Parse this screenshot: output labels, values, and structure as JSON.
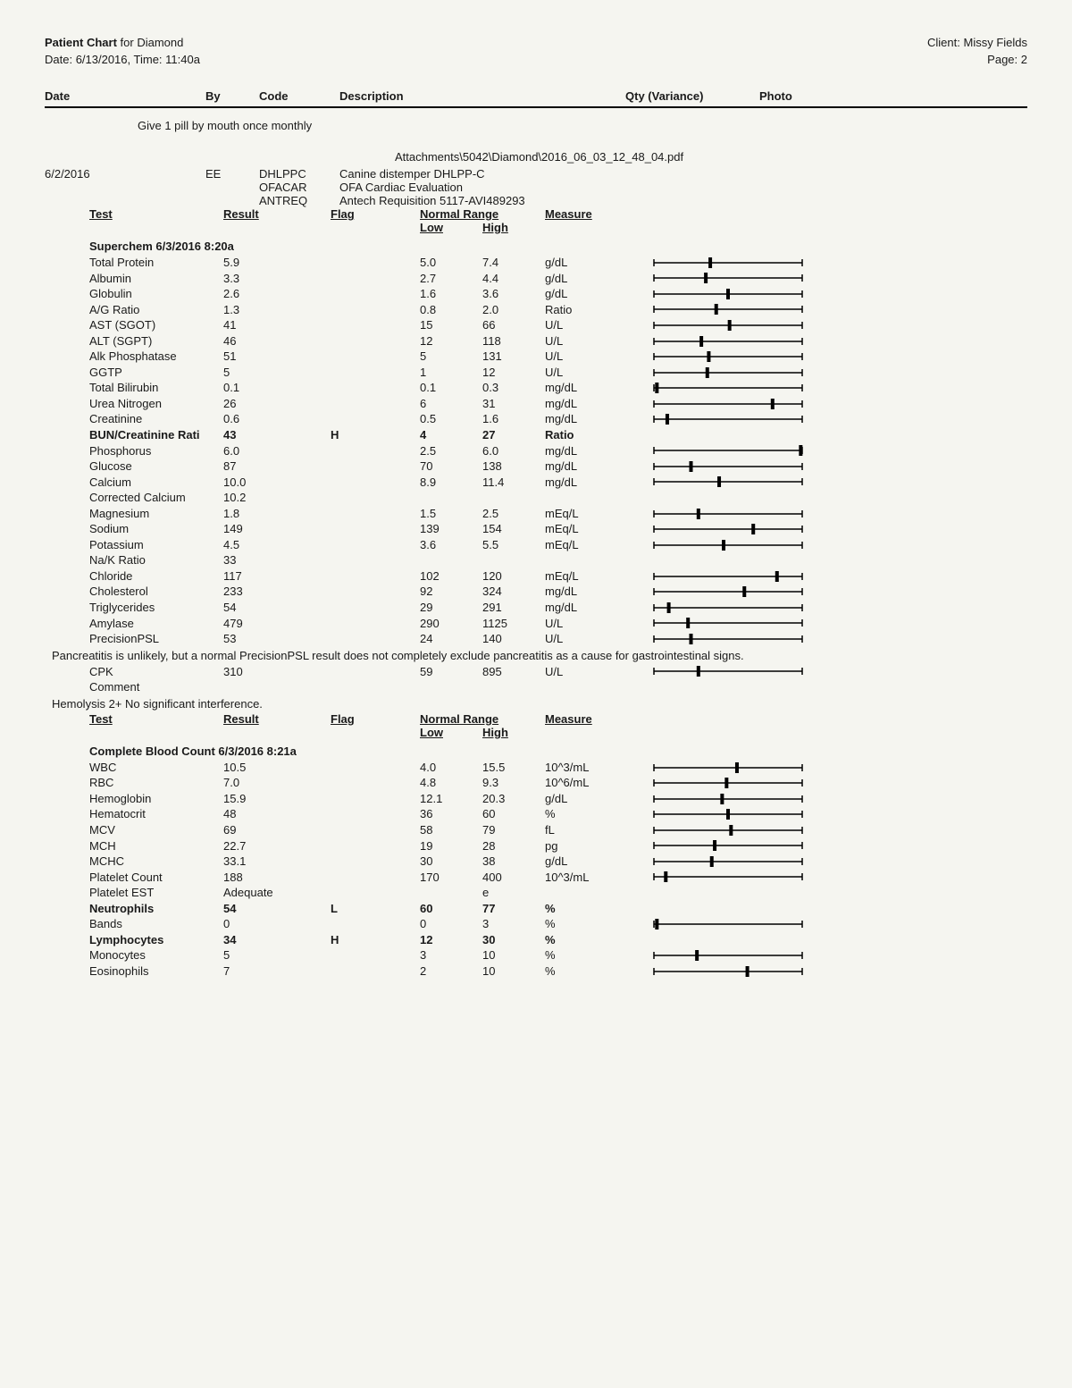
{
  "header": {
    "patient_chart_label": "Patient Chart",
    "for_label": " for ",
    "patient_name": "Diamond",
    "date_label": "Date: ",
    "date": "6/13/2016",
    "time_label": ", Time: ",
    "time": "11:40a",
    "client_label": "Client: ",
    "client_name": "Missy Fields",
    "page_label": "Page: ",
    "page": "2"
  },
  "columns": {
    "date": "Date",
    "by": "By",
    "code": "Code",
    "description": "Description",
    "qty": "Qty (Variance)",
    "photo": "Photo"
  },
  "instruction": "Give 1 pill by mouth once monthly",
  "attachment": "Attachments\\5042\\Diamond\\2016_06_03_12_48_04.pdf",
  "entry": {
    "date": "6/2/2016",
    "by": "EE",
    "codes": [
      {
        "code": "DHLPPC",
        "desc": "Canine distemper DHLPP-C"
      },
      {
        "code": "OFACAR",
        "desc": "OFA Cardiac Evaluation"
      },
      {
        "code": "ANTREQ",
        "desc": "Antech Requisition 5117-AVI489293"
      }
    ]
  },
  "test_headers": {
    "test": "Test",
    "result": "Result",
    "flag": "Flag",
    "normal_range": "Normal Range",
    "low": "Low",
    "high": "High",
    "measure": "Measure"
  },
  "sections": [
    {
      "title": "Superchem 6/3/2016 8:20a",
      "rows": [
        {
          "name": "Total Protein",
          "result": "5.9",
          "flag": "",
          "low": "5.0",
          "high": "7.4",
          "measure": "g/dL",
          "pos": 0.38
        },
        {
          "name": "Albumin",
          "result": "3.3",
          "flag": "",
          "low": "2.7",
          "high": "4.4",
          "measure": "g/dL",
          "pos": 0.35
        },
        {
          "name": "Globulin",
          "result": "2.6",
          "flag": "",
          "low": "1.6",
          "high": "3.6",
          "measure": "g/dL",
          "pos": 0.5
        },
        {
          "name": "A/G Ratio",
          "result": "1.3",
          "flag": "",
          "low": "0.8",
          "high": "2.0",
          "measure": "Ratio",
          "pos": 0.42
        },
        {
          "name": "AST (SGOT)",
          "result": "41",
          "flag": "",
          "low": "15",
          "high": "66",
          "measure": "U/L",
          "pos": 0.51
        },
        {
          "name": "ALT (SGPT)",
          "result": "46",
          "flag": "",
          "low": "12",
          "high": "118",
          "measure": "U/L",
          "pos": 0.32
        },
        {
          "name": "Alk Phosphatase",
          "result": "51",
          "flag": "",
          "low": "5",
          "high": "131",
          "measure": "U/L",
          "pos": 0.37
        },
        {
          "name": "GGTP",
          "result": "5",
          "flag": "",
          "low": "1",
          "high": "12",
          "measure": "U/L",
          "pos": 0.36
        },
        {
          "name": "Total Bilirubin",
          "result": "0.1",
          "flag": "",
          "low": "0.1",
          "high": "0.3",
          "measure": "mg/dL",
          "pos": 0.02
        },
        {
          "name": "Urea Nitrogen",
          "result": "26",
          "flag": "",
          "low": "6",
          "high": "31",
          "measure": "mg/dL",
          "pos": 0.8
        },
        {
          "name": "Creatinine",
          "result": "0.6",
          "flag": "",
          "low": "0.5",
          "high": "1.6",
          "measure": "mg/dL",
          "pos": 0.09
        },
        {
          "name": "BUN/Creatinine Rati",
          "result": "43",
          "flag": "H",
          "low": "4",
          "high": "27",
          "measure": "Ratio",
          "bold": true,
          "pos": null
        },
        {
          "name": "Phosphorus",
          "result": "6.0",
          "flag": "",
          "low": "2.5",
          "high": "6.0",
          "measure": "mg/dL",
          "pos": 0.99
        },
        {
          "name": "Glucose",
          "result": "87",
          "flag": "",
          "low": "70",
          "high": "138",
          "measure": "mg/dL",
          "pos": 0.25
        },
        {
          "name": "Calcium",
          "result": "10.0",
          "flag": "",
          "low": "8.9",
          "high": "11.4",
          "measure": "mg/dL",
          "pos": 0.44
        },
        {
          "name": "Corrected Calcium",
          "result": "10.2",
          "flag": "",
          "low": "",
          "high": "",
          "measure": "",
          "pos": null
        },
        {
          "name": "Magnesium",
          "result": "1.8",
          "flag": "",
          "low": "1.5",
          "high": "2.5",
          "measure": "mEq/L",
          "pos": 0.3
        },
        {
          "name": "Sodium",
          "result": "149",
          "flag": "",
          "low": "139",
          "high": "154",
          "measure": "mEq/L",
          "pos": 0.67
        },
        {
          "name": "Potassium",
          "result": "4.5",
          "flag": "",
          "low": "3.6",
          "high": "5.5",
          "measure": "mEq/L",
          "pos": 0.47
        },
        {
          "name": "Na/K Ratio",
          "result": "33",
          "flag": "",
          "low": "",
          "high": "",
          "measure": "",
          "pos": null
        },
        {
          "name": "Chloride",
          "result": "117",
          "flag": "",
          "low": "102",
          "high": "120",
          "measure": "mEq/L",
          "pos": 0.83
        },
        {
          "name": "Cholesterol",
          "result": "233",
          "flag": "",
          "low": "92",
          "high": "324",
          "measure": "mg/dL",
          "pos": 0.61
        },
        {
          "name": "Triglycerides",
          "result": "54",
          "flag": "",
          "low": "29",
          "high": "291",
          "measure": "mg/dL",
          "pos": 0.1
        },
        {
          "name": "Amylase",
          "result": "479",
          "flag": "",
          "low": "290",
          "high": "1125",
          "measure": "U/L",
          "pos": 0.23
        },
        {
          "name": "PrecisionPSL",
          "result": "53",
          "flag": "",
          "low": "24",
          "high": "140",
          "measure": "U/L",
          "pos": 0.25
        }
      ],
      "note_after": "Pancreatitis is unlikely, but a normal PrecisionPSL result does not completely exclude pancreatitis as a cause for gastrointestinal signs.",
      "rows_after_note": [
        {
          "name": "CPK",
          "result": "310",
          "flag": "",
          "low": "59",
          "high": "895",
          "measure": "U/L",
          "pos": 0.3
        },
        {
          "name": "Comment",
          "result": "",
          "flag": "",
          "low": "",
          "high": "",
          "measure": "",
          "pos": null
        }
      ],
      "note_after2": "Hemolysis 2+ No significant interference."
    },
    {
      "title": "Complete Blood Count 6/3/2016 8:21a",
      "show_header": true,
      "rows": [
        {
          "name": "WBC",
          "result": "10.5",
          "flag": "",
          "low": "4.0",
          "high": "15.5",
          "measure": "10^3/mL",
          "pos": 0.56
        },
        {
          "name": "RBC",
          "result": "7.0",
          "flag": "",
          "low": "4.8",
          "high": "9.3",
          "measure": "10^6/mL",
          "pos": 0.49
        },
        {
          "name": "Hemoglobin",
          "result": "15.9",
          "flag": "",
          "low": "12.1",
          "high": "20.3",
          "measure": "g/dL",
          "pos": 0.46
        },
        {
          "name": "Hematocrit",
          "result": "48",
          "flag": "",
          "low": "36",
          "high": "60",
          "measure": "%",
          "pos": 0.5
        },
        {
          "name": "MCV",
          "result": "69",
          "flag": "",
          "low": "58",
          "high": "79",
          "measure": "fL",
          "pos": 0.52
        },
        {
          "name": "MCH",
          "result": "22.7",
          "flag": "",
          "low": "19",
          "high": "28",
          "measure": "pg",
          "pos": 0.41
        },
        {
          "name": "MCHC",
          "result": "33.1",
          "flag": "",
          "low": "30",
          "high": "38",
          "measure": "g/dL",
          "pos": 0.39
        },
        {
          "name": "Platelet Count",
          "result": "188",
          "flag": "",
          "low": "170",
          "high": "400",
          "measure": "10^3/mL",
          "pos": 0.08
        },
        {
          "name": "Platelet EST",
          "result": "Adequate",
          "flag": "",
          "low": "",
          "high": "e",
          "measure": "",
          "pos": null
        },
        {
          "name": "Neutrophils",
          "result": "54",
          "flag": "L",
          "low": "60",
          "high": "77",
          "measure": "%",
          "bold": true,
          "pos": null
        },
        {
          "name": "Bands",
          "result": "0",
          "flag": "",
          "low": "0",
          "high": "3",
          "measure": "%",
          "pos": 0.02
        },
        {
          "name": "Lymphocytes",
          "result": "34",
          "flag": "H",
          "low": "12",
          "high": "30",
          "measure": "%",
          "bold": true,
          "pos": null
        },
        {
          "name": "Monocytes",
          "result": "5",
          "flag": "",
          "low": "3",
          "high": "10",
          "measure": "%",
          "pos": 0.29
        },
        {
          "name": "Eosinophils",
          "result": "7",
          "flag": "",
          "low": "2",
          "high": "10",
          "measure": "%",
          "pos": 0.63
        }
      ]
    }
  ],
  "gauge_style": {
    "width": 170,
    "height": 14,
    "line_color": "#000000",
    "tick_color": "#000000",
    "marker_color": "#000000"
  }
}
